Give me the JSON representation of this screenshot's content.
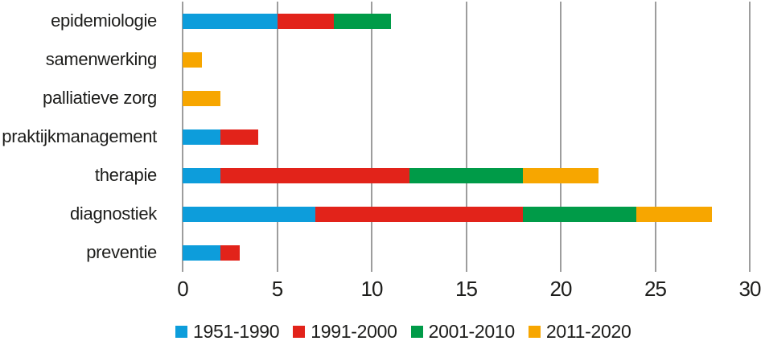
{
  "chart_data": {
    "type": "bar",
    "orientation": "horizontal",
    "stacked": true,
    "title": "",
    "xlabel": "",
    "ylabel": "",
    "categories": [
      "epidemiologie",
      "samenwerking",
      "palliatieve zorg",
      "praktijkmanagement",
      "therapie",
      "diagnostiek",
      "preventie"
    ],
    "series": [
      {
        "name": "1951-1990",
        "color": "#0d9ddb",
        "values": [
          5,
          0,
          0,
          2,
          2,
          7,
          2
        ]
      },
      {
        "name": "1991-2000",
        "color": "#e2231a",
        "values": [
          3,
          0,
          0,
          2,
          10,
          11,
          1
        ]
      },
      {
        "name": "2001-2010",
        "color": "#009b48",
        "values": [
          3,
          0,
          0,
          0,
          6,
          6,
          0
        ]
      },
      {
        "name": "2011-2020",
        "color": "#f7a600",
        "values": [
          0,
          1,
          2,
          0,
          4,
          4,
          0
        ]
      }
    ],
    "totals": [
      11,
      1,
      2,
      4,
      22,
      28,
      3
    ],
    "x_ticks": [
      "0",
      "5",
      "10",
      "15",
      "20",
      "25",
      "30"
    ],
    "xlim": [
      0,
      30
    ],
    "grid": true,
    "gridline_color": "#9d9d9d",
    "text_color": "#1d1d1b",
    "legend_position": "bottom"
  }
}
